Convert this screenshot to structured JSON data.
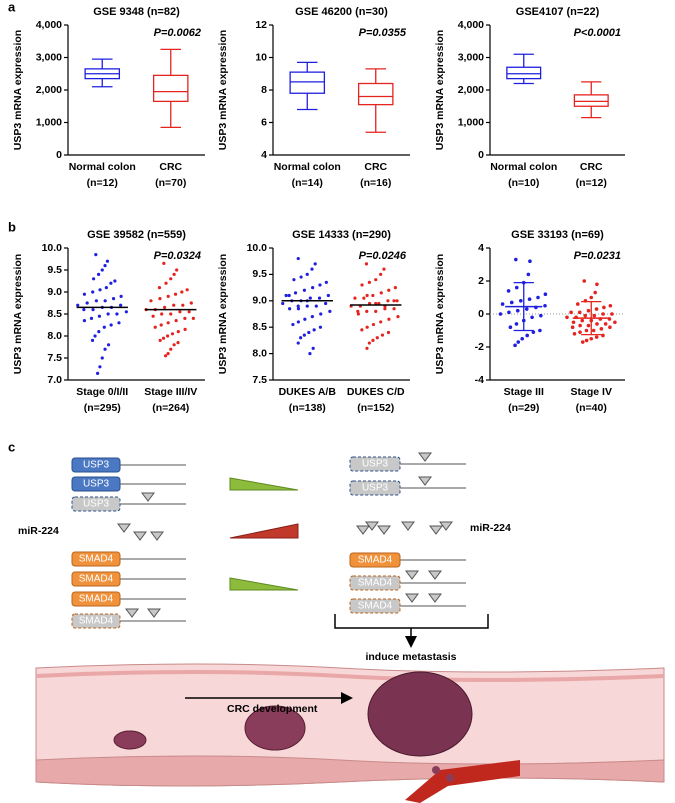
{
  "panel_labels": [
    "a",
    "b",
    "c"
  ],
  "chart_data": [
    {
      "type": "box",
      "title": "GSE 9348 (n=82)",
      "y_label": "USP3 mRNA expression",
      "annotation": "P=0.0062",
      "categories": [
        "Normal colon",
        "CRC"
      ],
      "counts": [
        "(n=12)",
        "(n=70)"
      ],
      "colors": [
        "#1f1fe0",
        "#e5231f"
      ],
      "boxes": [
        {
          "min": 2100,
          "q1": 2350,
          "median": 2500,
          "q3": 2650,
          "max": 2950
        },
        {
          "min": 850,
          "q1": 1650,
          "median": 1950,
          "q3": 2450,
          "max": 3250
        }
      ],
      "ylim": [
        0,
        4000
      ],
      "yticks": [
        0,
        {
          "value": 1000,
          "label": "1,000"
        },
        {
          "value": 2000,
          "label": "2,000"
        },
        {
          "value": 3000,
          "label": "3,000"
        },
        {
          "value": 4000,
          "label": "4,000"
        }
      ]
    },
    {
      "type": "box",
      "title": "GSE 46200 (n=30)",
      "y_label": "USP3 mRNA expression",
      "annotation": "P=0.0355",
      "categories": [
        "Normal colon",
        "CRC"
      ],
      "counts": [
        "(n=14)",
        "(n=16)"
      ],
      "colors": [
        "#1f1fe0",
        "#e5231f"
      ],
      "boxes": [
        {
          "min": 6.8,
          "q1": 7.8,
          "median": 8.5,
          "q3": 9.1,
          "max": 9.7
        },
        {
          "min": 5.4,
          "q1": 7.1,
          "median": 7.6,
          "q3": 8.4,
          "max": 9.3
        }
      ],
      "ylim": [
        4,
        12
      ],
      "yticks": [
        4,
        6,
        8,
        10,
        12
      ]
    },
    {
      "type": "box",
      "title": "GSE4107 (n=22)",
      "y_label": "USP3 mRNA expression",
      "annotation": "P<0.0001",
      "categories": [
        "Normal colon",
        "CRC"
      ],
      "counts": [
        "(n=10)",
        "(n=12)"
      ],
      "colors": [
        "#1f1fe0",
        "#e5231f"
      ],
      "boxes": [
        {
          "min": 2200,
          "q1": 2350,
          "median": 2500,
          "q3": 2700,
          "max": 3100
        },
        {
          "min": 1150,
          "q1": 1500,
          "median": 1650,
          "q3": 1850,
          "max": 2250
        }
      ],
      "ylim": [
        0,
        4000
      ],
      "yticks": [
        0,
        {
          "value": 1000,
          "label": "1,000"
        },
        {
          "value": 2000,
          "label": "2,000"
        },
        {
          "value": 3000,
          "label": "3,000"
        },
        {
          "value": 4000,
          "label": "4,000"
        }
      ]
    },
    {
      "type": "strip",
      "title": "GSE 39582 (n=559)",
      "y_label": "USP3 mRNA expression",
      "annotation": "P=0.0324",
      "categories": [
        "Stage 0/I/II",
        "Stage III/IV"
      ],
      "counts": [
        "(n=295)",
        "(n=264)"
      ],
      "colors": [
        "#1f1fe0",
        "#e5231f"
      ],
      "values": [
        [
          9.85,
          9.7,
          9.6,
          9.5,
          9.4,
          9.3,
          9.25,
          9.2,
          9.1,
          9.05,
          9.0,
          8.95,
          8.9,
          8.85,
          8.8,
          8.8,
          8.75,
          8.7,
          8.7,
          8.65,
          8.65,
          8.6,
          8.6,
          8.55,
          8.5,
          8.5,
          8.45,
          8.4,
          8.35,
          8.3,
          8.25,
          8.2,
          8.1,
          8.0,
          7.9,
          7.8,
          7.7,
          7.5,
          7.3,
          7.15
        ],
        [
          9.65,
          9.5,
          9.4,
          9.3,
          9.2,
          9.1,
          9.05,
          9.0,
          8.95,
          8.9,
          8.85,
          8.8,
          8.75,
          8.7,
          8.7,
          8.65,
          8.6,
          8.6,
          8.55,
          8.55,
          8.5,
          8.5,
          8.45,
          8.4,
          8.4,
          8.35,
          8.3,
          8.25,
          8.2,
          8.15,
          8.1,
          8.05,
          8.0,
          7.95,
          7.9,
          7.85,
          7.8,
          7.7,
          7.6,
          7.55
        ]
      ],
      "mean": [
        8.65,
        8.6
      ],
      "ylim": [
        7.0,
        10.0
      ],
      "yticks": [
        {
          "value": 7,
          "label": "7.0"
        },
        7.5,
        {
          "value": 8,
          "label": "8.0"
        },
        8.5,
        {
          "value": 9,
          "label": "9.0"
        },
        9.5,
        {
          "value": 10,
          "label": "10.0"
        }
      ]
    },
    {
      "type": "strip",
      "title": "GSE 14333 (n=290)",
      "y_label": "USP3 mRNA expression",
      "annotation": "P=0.0246",
      "categories": [
        "DUKES A/B",
        "DUKES C/D"
      ],
      "counts": [
        "(n=138)",
        "(n=152)"
      ],
      "colors": [
        "#1f1fe0",
        "#e5231f"
      ],
      "values": [
        [
          9.8,
          9.7,
          9.6,
          9.5,
          9.45,
          9.4,
          9.35,
          9.3,
          9.25,
          9.2,
          9.15,
          9.1,
          9.1,
          9.05,
          9.05,
          9.0,
          9.0,
          8.95,
          8.95,
          8.9,
          8.9,
          8.85,
          8.85,
          8.8,
          8.75,
          8.7,
          8.65,
          8.6,
          8.55,
          8.5,
          8.45,
          8.4,
          8.35,
          8.3,
          8.2,
          8.1,
          8.0,
          9.0,
          8.9,
          9.1
        ],
        [
          9.7,
          9.6,
          9.5,
          9.4,
          9.35,
          9.3,
          9.25,
          9.2,
          9.15,
          9.1,
          9.05,
          9.05,
          9.0,
          9.0,
          8.95,
          8.95,
          8.9,
          8.9,
          8.85,
          8.85,
          8.8,
          8.8,
          8.75,
          8.7,
          8.65,
          8.6,
          8.55,
          8.5,
          8.45,
          8.4,
          8.35,
          8.3,
          8.25,
          8.2,
          8.1,
          9.0,
          8.9,
          8.95,
          9.1,
          8.8
        ]
      ],
      "mean": [
        9.0,
        8.92
      ],
      "ylim": [
        7.5,
        10.0
      ],
      "yticks": [
        7.5,
        {
          "value": 8,
          "label": "8.0"
        },
        8.5,
        {
          "value": 9,
          "label": "9.0"
        },
        9.5,
        {
          "value": 10,
          "label": "10.0"
        }
      ]
    },
    {
      "type": "strip",
      "title": "GSE 33193 (n=69)",
      "y_label": "USP3 mRNA expression",
      "annotation": "P=0.0231",
      "categories": [
        "Stage III",
        "Stage IV"
      ],
      "counts": [
        "(n=29)",
        "(n=40)"
      ],
      "colors": [
        "#1f1fe0",
        "#e5231f"
      ],
      "values": [
        [
          3.3,
          3.2,
          2.4,
          1.9,
          1.6,
          1.4,
          1.2,
          1.0,
          0.9,
          0.8,
          0.7,
          0.6,
          0.5,
          0.4,
          0.3,
          0.2,
          0.1,
          0.0,
          -0.1,
          -0.2,
          -0.4,
          -0.6,
          -0.8,
          -1.0,
          -1.1,
          -1.3,
          -1.5,
          -1.7,
          -1.9
        ],
        [
          2.0,
          1.8,
          1.3,
          1.0,
          0.8,
          0.6,
          0.5,
          0.4,
          0.3,
          0.2,
          0.1,
          0.1,
          0.0,
          0.0,
          -0.1,
          -0.1,
          -0.2,
          -0.2,
          -0.3,
          -0.3,
          -0.4,
          -0.4,
          -0.5,
          -0.5,
          -0.6,
          -0.6,
          -0.7,
          -0.7,
          -0.8,
          -0.8,
          -0.9,
          -1.0,
          -1.0,
          -1.1,
          -1.2,
          -1.3,
          -1.4,
          -1.5,
          -1.6,
          -1.7
        ]
      ],
      "mean": [
        0.45,
        -0.25
      ],
      "sd": [
        1.45,
        1.0
      ],
      "reference_line": 0,
      "ylim": [
        -4,
        4
      ],
      "yticks": [
        -4,
        -2,
        0,
        2,
        4
      ]
    }
  ],
  "diagram": {
    "usp3": "USP3",
    "smad4": "SMAD4",
    "mirna": "miR-224",
    "metastasis": "induce metastasis",
    "development": "CRC development"
  }
}
